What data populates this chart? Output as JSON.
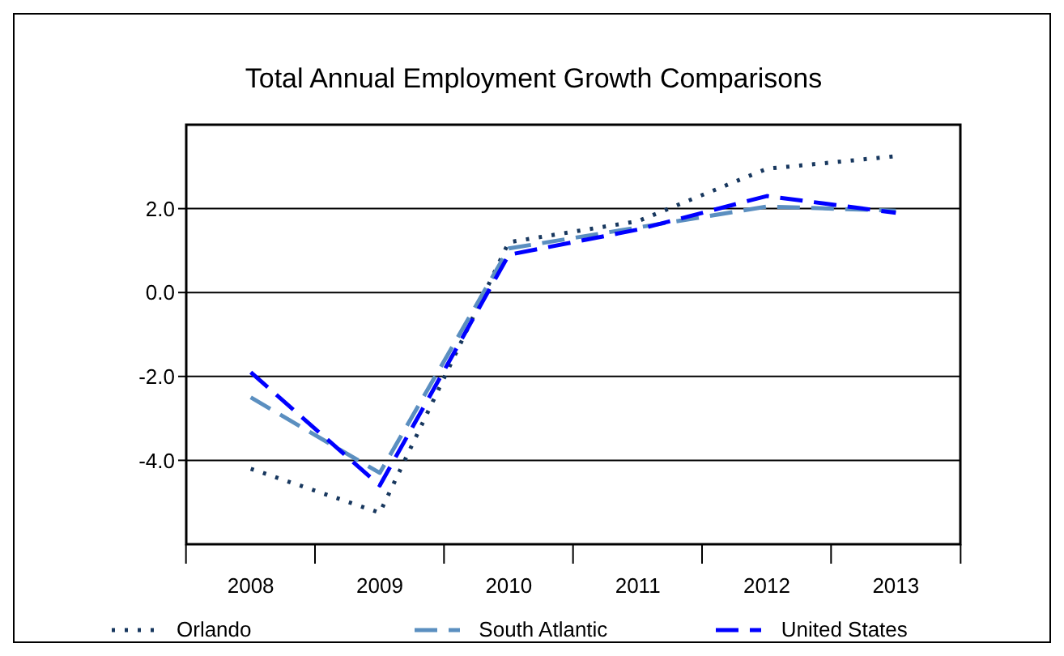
{
  "chart_data": {
    "type": "line",
    "title": "Total Annual Employment Growth Comparisons",
    "categories": [
      "2008",
      "2009",
      "2010",
      "2011",
      "2012",
      "2013"
    ],
    "series": [
      {
        "name": "Orlando",
        "color": "#17375e",
        "line_style": "dotted",
        "values": [
          -4.2,
          -5.25,
          1.2,
          1.7,
          2.95,
          3.25
        ]
      },
      {
        "name": "South Atlantic",
        "color": "#5b8fc0",
        "line_style": "dashed",
        "values": [
          -2.5,
          -4.3,
          1.05,
          1.55,
          2.05,
          1.95
        ]
      },
      {
        "name": "United States",
        "color": "#0000ff",
        "line_style": "dashed",
        "values": [
          -1.9,
          -4.6,
          0.9,
          1.5,
          2.3,
          1.9
        ]
      }
    ],
    "ylim": [
      -6,
      4
    ],
    "yticks": [
      {
        "value": -4,
        "label": "-4.0"
      },
      {
        "value": -2,
        "label": "-2.0"
      },
      {
        "value": 0,
        "label": "0.0"
      },
      {
        "value": 2,
        "label": "2.0"
      }
    ],
    "grid": "y",
    "legend": "bottom",
    "marker": "none"
  }
}
